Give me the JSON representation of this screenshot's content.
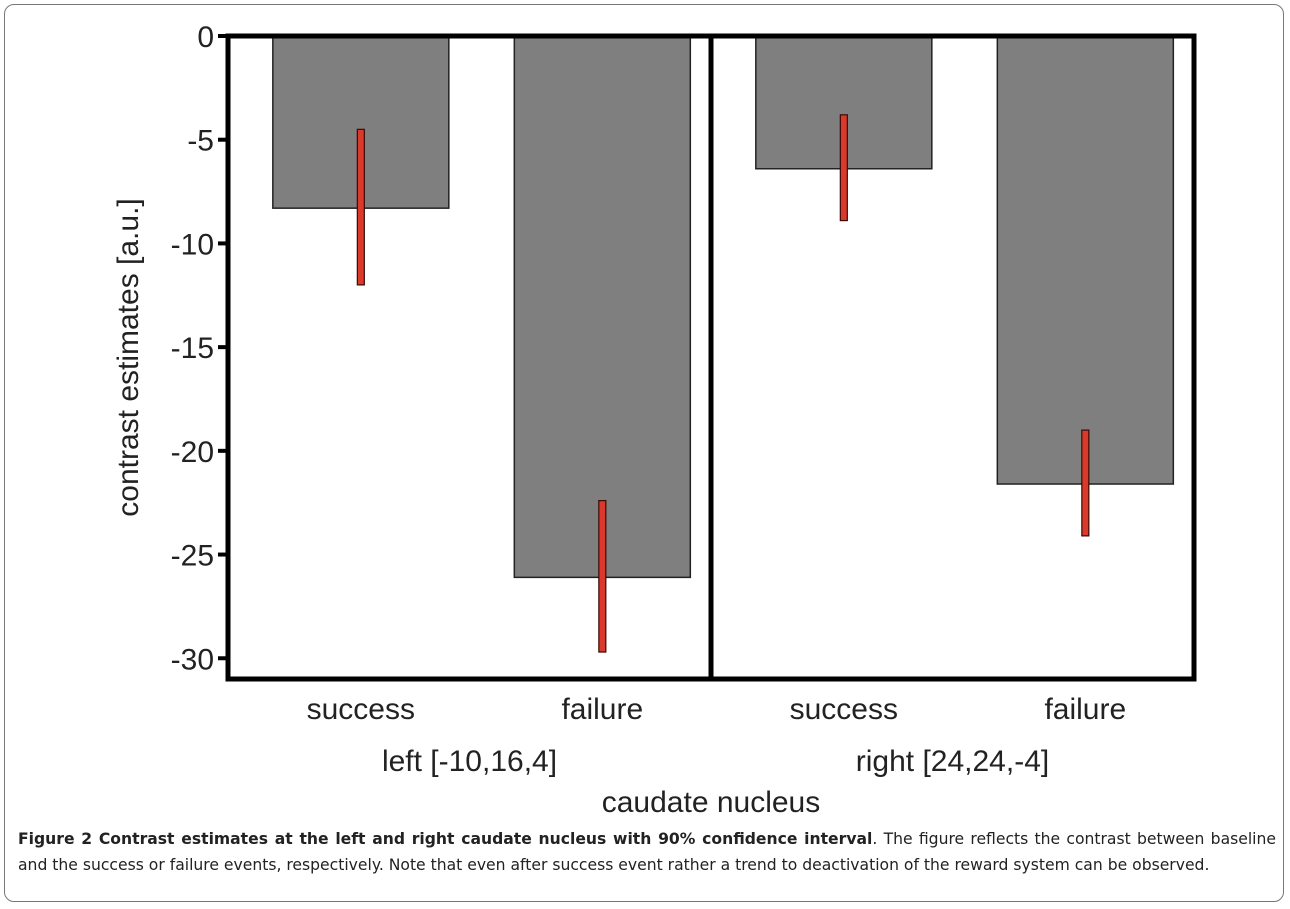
{
  "chart_data": {
    "type": "bar",
    "panels": [
      {
        "name": "left [-10,16,4]",
        "categories": [
          "success",
          "failure"
        ]
      },
      {
        "name": "right [24,24,-4]",
        "categories": [
          "success",
          "failure"
        ]
      }
    ],
    "bars": [
      {
        "panel": 0,
        "category": "success",
        "value": -8.3,
        "ci_low": -12.0,
        "ci_high": -4.5
      },
      {
        "panel": 0,
        "category": "failure",
        "value": -26.1,
        "ci_low": -29.7,
        "ci_high": -22.4
      },
      {
        "panel": 1,
        "category": "success",
        "value": -6.4,
        "ci_low": -8.9,
        "ci_high": -3.8
      },
      {
        "panel": 1,
        "category": "failure",
        "value": -21.6,
        "ci_low": -24.1,
        "ci_high": -19.0
      }
    ],
    "ylabel": "contrast estimates [a.u.]",
    "xlabel": "caudate nucleus",
    "ylim": [
      -31,
      0
    ],
    "yticks": [
      0,
      -5,
      -10,
      -15,
      -20,
      -25,
      -30
    ],
    "ytick_labels": [
      "0",
      "-5",
      "-10",
      "-15",
      "-20",
      "-25",
      "-30"
    ],
    "colors": {
      "bar": "#7f7f7f",
      "error_bar": "#d93a2b",
      "axes": "#000000"
    }
  },
  "caption": {
    "title": "Figure 2 Contrast estimates at the left and right caudate nucleus with 90% confidence interval",
    "text": ". The figure reflects the contrast between baseline and the success or failure events, respectively. Note that even after success event rather a trend to deactivation of the reward system can be observed."
  }
}
